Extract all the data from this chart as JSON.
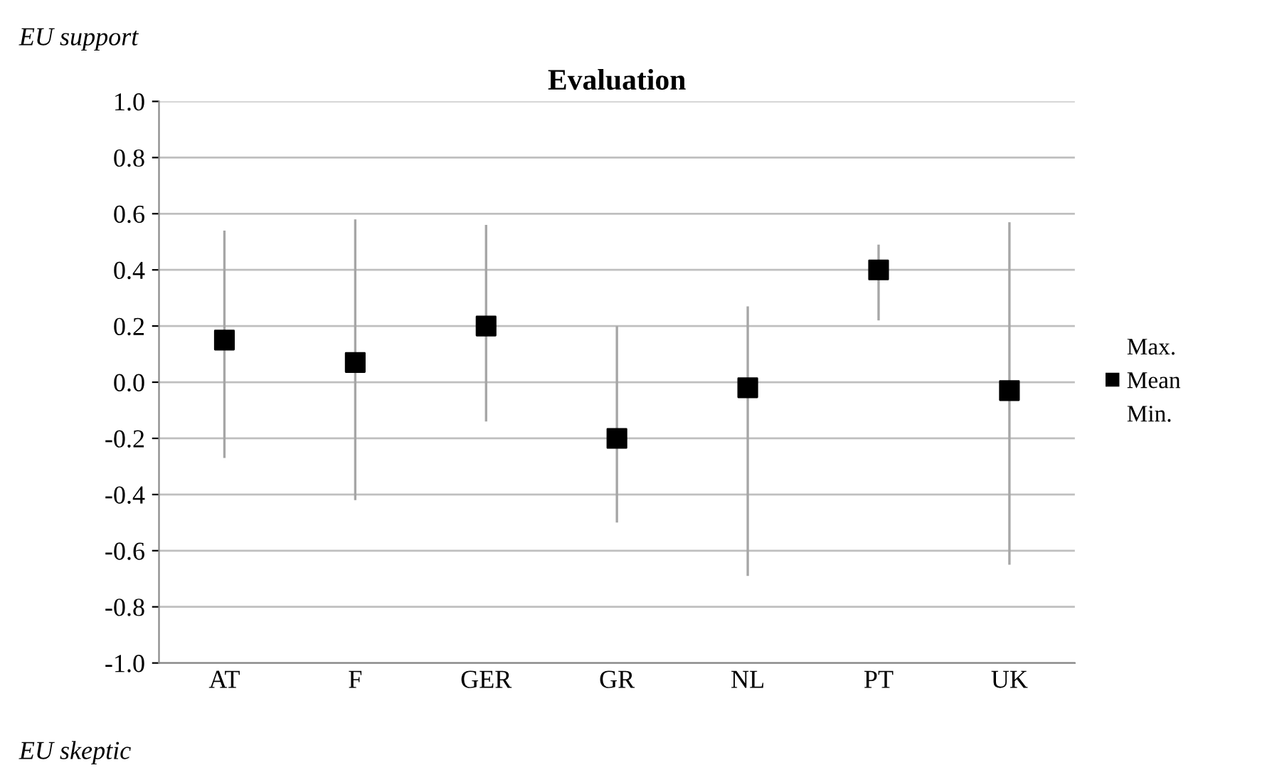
{
  "chart_data": {
    "type": "scatter",
    "title": "Evaluation",
    "categories": [
      "AT",
      "F",
      "GER",
      "GR",
      "NL",
      "PT",
      "UK"
    ],
    "series": [
      {
        "name": "Mean",
        "color": "#000000",
        "marker": "square",
        "values": [
          0.15,
          0.07,
          0.2,
          -0.2,
          -0.02,
          0.4,
          -0.03
        ],
        "errors": [
          [
            -0.27,
            0.54
          ],
          [
            -0.42,
            0.58
          ],
          [
            -0.14,
            0.56
          ],
          [
            -0.5,
            0.2
          ],
          [
            -0.69,
            0.27
          ],
          [
            0.22,
            0.49
          ],
          [
            -0.65,
            0.57
          ]
        ]
      }
    ],
    "ylim": [
      -1.0,
      1.0
    ],
    "yticks": [
      {
        "value": -1.0,
        "label": "-1.0"
      },
      {
        "value": -0.8,
        "label": "-0.8"
      },
      {
        "value": -0.6,
        "label": "-0.6"
      },
      {
        "value": -0.4,
        "label": "-0.4"
      },
      {
        "value": -0.2,
        "label": "-0.2"
      },
      {
        "value": 0.0,
        "label": "0.0"
      },
      {
        "value": 0.2,
        "label": "0.2"
      },
      {
        "value": 0.4,
        "label": "0.4"
      },
      {
        "value": 0.6,
        "label": "0.6"
      },
      {
        "value": 0.8,
        "label": "0.8"
      },
      {
        "value": 1.0,
        "label": "1.0"
      }
    ],
    "grid": "y",
    "legend": "right",
    "annotations": [
      "EU support",
      "EU skeptic",
      "Max.",
      "Min."
    ]
  }
}
